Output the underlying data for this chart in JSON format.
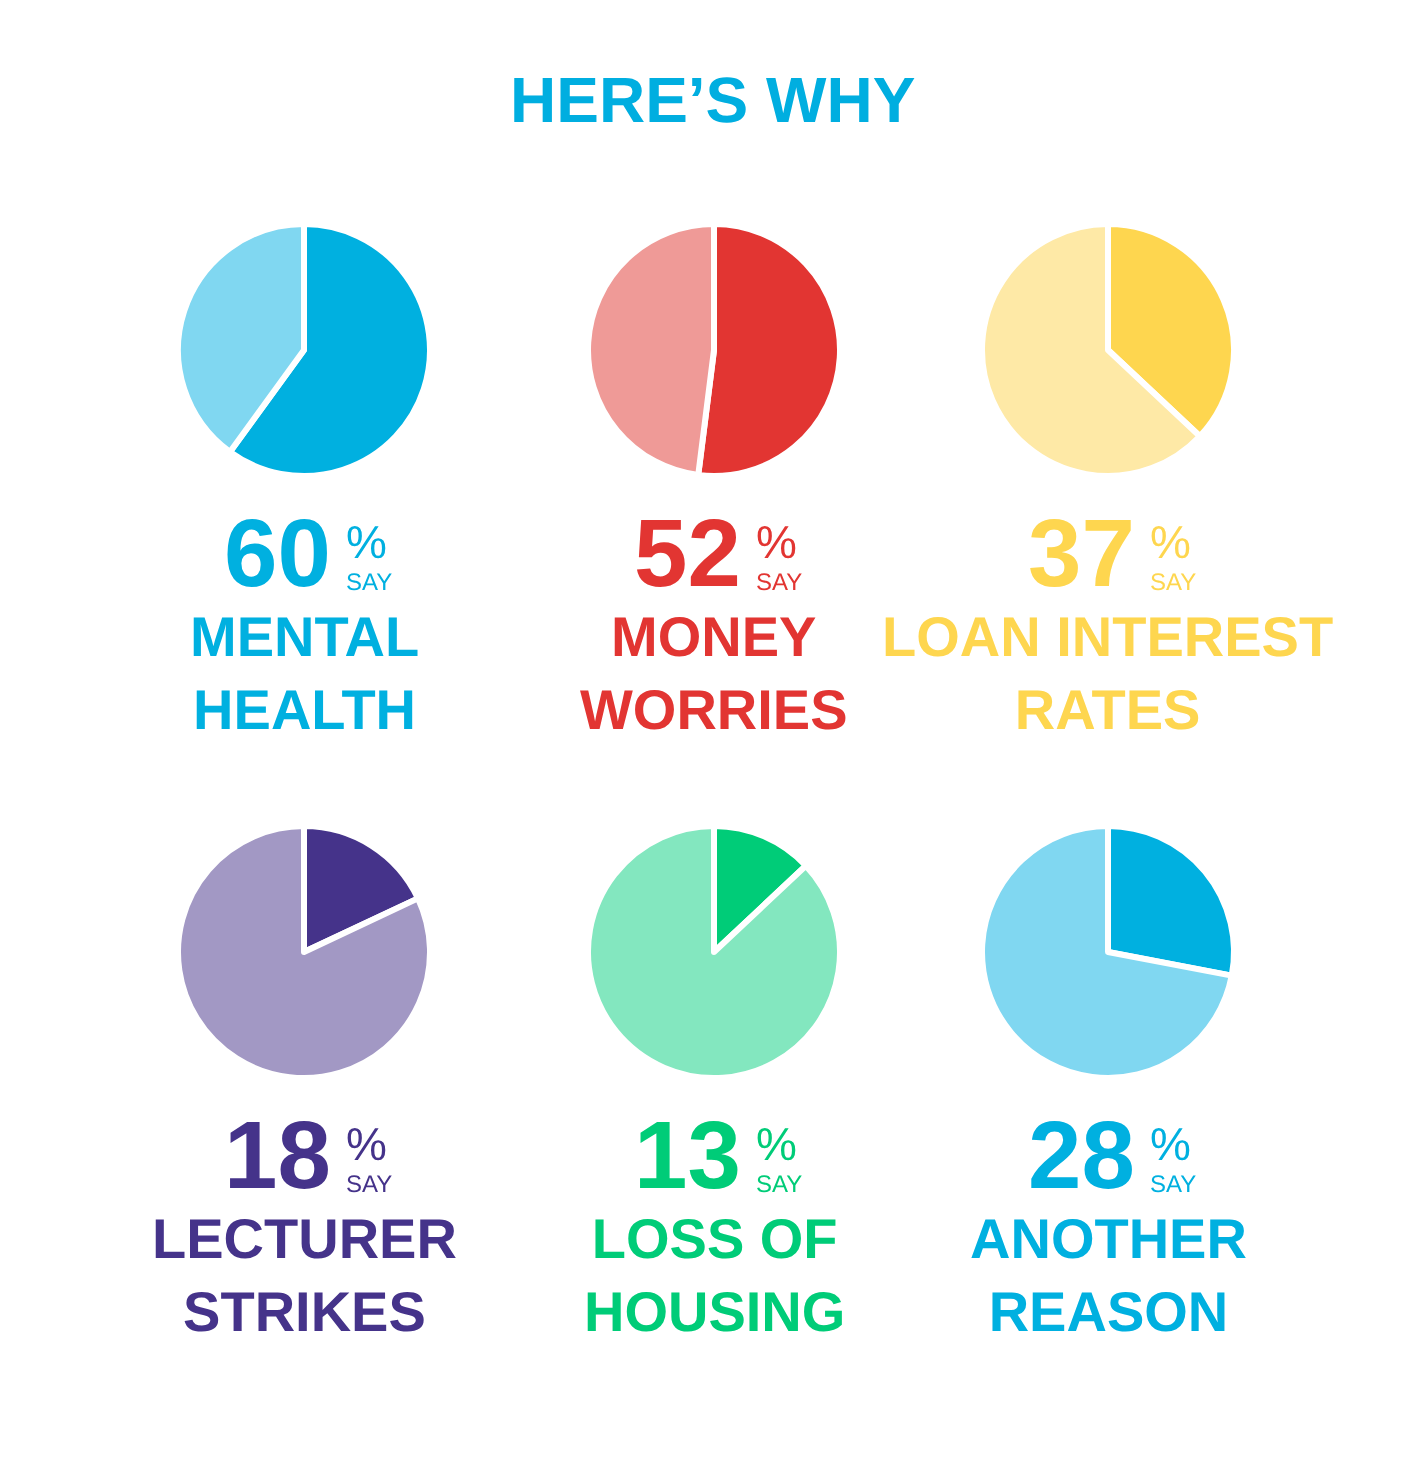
{
  "chart_data": [
    {
      "type": "other",
      "title": "HERE’S WHY"
    },
    {
      "type": "pie",
      "title": "MENTAL\nHEALTH",
      "categories": [
        null,
        null
      ],
      "values": [
        60,
        40
      ],
      "colors": [
        "#00b0e0",
        "#80d7f1"
      ],
      "annotations": [
        "60",
        "%",
        "SAY"
      ]
    },
    {
      "type": "pie",
      "title": "MONEY\nWORRIES",
      "categories": [
        null,
        null
      ],
      "values": [
        52,
        48
      ],
      "colors": [
        "#e23532",
        "#ef9a97"
      ],
      "annotations": [
        "52",
        "%",
        "SAY"
      ]
    },
    {
      "type": "pie",
      "title": "LOAN INTEREST\nRATES",
      "categories": [
        null,
        null
      ],
      "values": [
        37,
        63
      ],
      "colors": [
        "#fed64f",
        "#fee9a6"
      ],
      "annotations": [
        "37",
        "%",
        "SAY"
      ]
    },
    {
      "type": "pie",
      "title": "LECTURER\nSTRIKES",
      "categories": [
        null,
        null
      ],
      "values": [
        18,
        82
      ],
      "colors": [
        "#45338a",
        "#a298c4"
      ],
      "annotations": [
        "18",
        "%",
        "SAY"
      ]
    },
    {
      "type": "pie",
      "title": "LOSS OF\nHOUSING",
      "categories": [
        null,
        null
      ],
      "values": [
        13,
        87
      ],
      "colors": [
        "#00cc78",
        "#83e7bf"
      ],
      "annotations": [
        "13",
        "%",
        "SAY"
      ]
    },
    {
      "type": "pie",
      "title": "ANOTHER\nREASON",
      "categories": [
        null,
        null
      ],
      "values": [
        28,
        72
      ],
      "colors": [
        "#00b0e0",
        "#80d7f1"
      ],
      "annotations": [
        "28",
        "%",
        "SAY"
      ]
    }
  ]
}
